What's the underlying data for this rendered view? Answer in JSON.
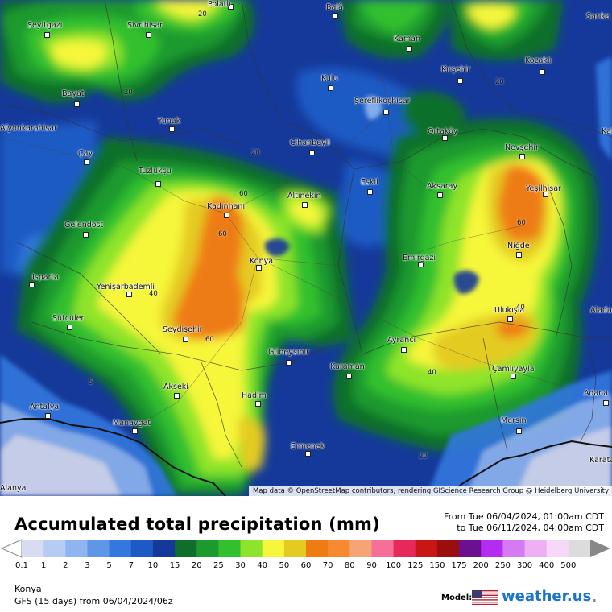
{
  "map": {
    "attribution": "Map data © OpenStreetMap contributors, rendering GIScience Research Group @ Heidelberg University",
    "cities": [
      "Polatlı",
      "Balâ",
      "Sarıka",
      "Seyitgazi",
      "Sivrihisar",
      "Kaman",
      "Kozaklı",
      "Kırşehir",
      "Kulu",
      "Bayat",
      "Şereflikoçhisar",
      "Yunak",
      "Afyonkarahisar",
      "Cihanbeyli",
      "Ortaköy",
      "Çay",
      "Nevşehir",
      "Kadınhanı",
      "Tuzlukçu",
      "Eskil",
      "Aksaray",
      "Altınekin",
      "Yeşilhisar",
      "Gelendost",
      "Konya",
      "Emirgazi",
      "Niğde",
      "Isparta",
      "Yenişarbademli",
      "Ulukışla",
      "Sütçüler",
      "Seydişehir",
      "Aladağ",
      "Güneysınır",
      "Ayrancı",
      "Karaman",
      "Çamlıyayla",
      "Akseki",
      "Adana",
      "Hadim",
      "Antalya",
      "Manavgat",
      "Mersin",
      "Ermenek",
      "Karatas",
      "Alanya",
      "Kale"
    ],
    "contour_labels": [
      "20",
      "20",
      "20",
      "20",
      "40",
      "60",
      "60",
      "60",
      "40",
      "40",
      "5",
      "20",
      "60"
    ]
  },
  "title": "Accumulated total precipitation (mm)",
  "date_range": {
    "from": "From Tue 06/04/2024, 01:00am CDT",
    "to": "to Tue 06/11/2024, 04:00am CDT"
  },
  "legend": {
    "ticks": [
      "0.1",
      "1",
      "2",
      "3",
      "5",
      "7",
      "10",
      "15",
      "20",
      "25",
      "30",
      "40",
      "50",
      "60",
      "70",
      "80",
      "90",
      "100",
      "125",
      "150",
      "175",
      "200",
      "250",
      "300",
      "400",
      "500"
    ],
    "colors": [
      "#d7dcf0",
      "#b7ccf5",
      "#8fb5f0",
      "#5f96e8",
      "#3278de",
      "#1e5ac4",
      "#15399a",
      "#0f6f2a",
      "#1c9a2e",
      "#32c02f",
      "#8ee42c",
      "#f6f63a",
      "#e4cb22",
      "#ee7c12",
      "#f58a2e",
      "#f5a474",
      "#f56f98",
      "#e8285a",
      "#c81515",
      "#9a0e0e",
      "#6a1090",
      "#b32cf0",
      "#d57af2",
      "#eeb0f3",
      "#f8d8f9",
      "#dcdcdc"
    ]
  },
  "location": "Konya",
  "model_run": "GFS (15 days) from  06/04/2024/06z",
  "model_label": "Model:",
  "brand": "weather.us"
}
